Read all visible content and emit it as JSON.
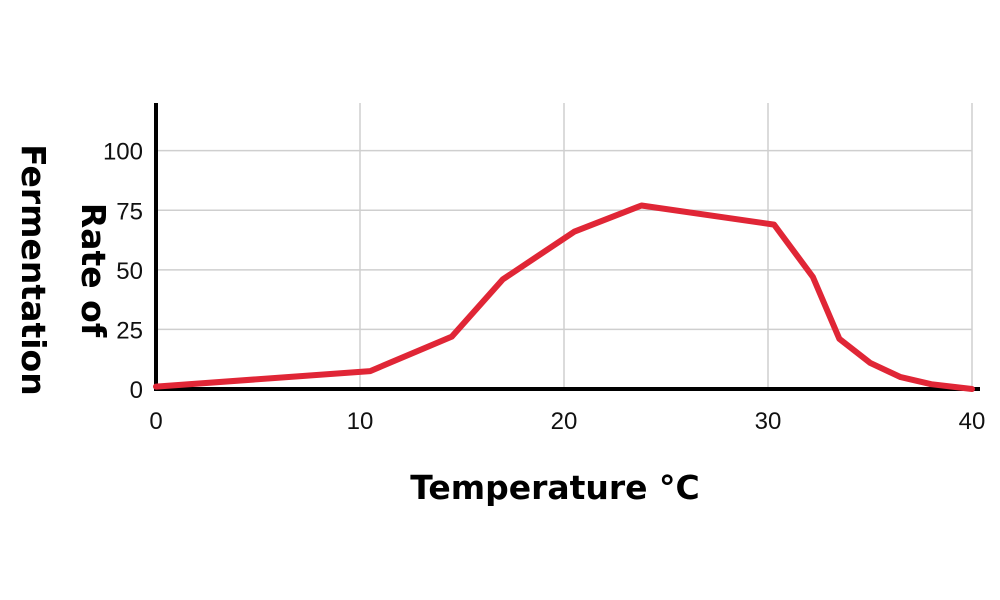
{
  "chart_data": {
    "type": "line",
    "title": "",
    "xlabel": "Temperature °C",
    "ylabel_lines": [
      "Rate of",
      "Fermentation"
    ],
    "xlim": [
      0,
      40
    ],
    "ylim": [
      0,
      120
    ],
    "xticks": [
      0,
      10,
      20,
      30,
      40
    ],
    "yticks": [
      0,
      25,
      50,
      75,
      100
    ],
    "grid": true,
    "line_color": "#e02636",
    "series": [
      {
        "x": [
          0,
          10.5,
          14.5,
          17,
          20.5,
          23.8,
          30.3,
          32.2,
          33.5,
          35,
          36.5,
          38,
          40
        ],
        "y": [
          1,
          7.5,
          22,
          46,
          66,
          77,
          69,
          47,
          21,
          11,
          5,
          2,
          0
        ]
      }
    ]
  }
}
